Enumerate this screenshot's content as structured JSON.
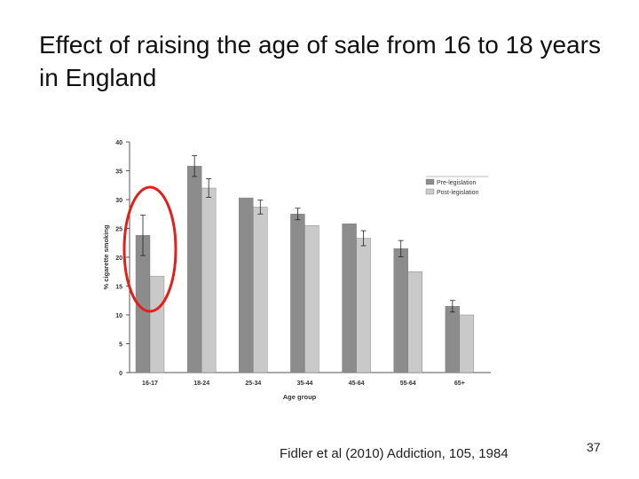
{
  "slide": {
    "title": "Effect of raising the age of sale from 16 to 18 years in England",
    "citation": "Fidler et al (2010) Addiction, 105, 1984",
    "page_number": "37"
  },
  "colors": {
    "pre": "#8c8c8c",
    "post": "#c9c9c9",
    "highlight": "#e0201b"
  },
  "chart_data": {
    "type": "bar",
    "xlabel": "Age group",
    "ylabel": "% cigarette smoking",
    "ylim": [
      0,
      40
    ],
    "yticks": [
      0,
      5,
      10,
      15,
      20,
      25,
      30,
      35,
      40
    ],
    "categories": [
      "16-17",
      "18-24",
      "25-34",
      "35-44",
      "45-64",
      "55-64",
      "65+"
    ],
    "series": [
      {
        "name": "Pre-legislation",
        "values": [
          23.8,
          35.8,
          30.3,
          27.5,
          25.8,
          21.5,
          11.5
        ],
        "errors": [
          3.5,
          1.8,
          0.0,
          1.0,
          0.0,
          1.4,
          1.0
        ]
      },
      {
        "name": "Post-legislation",
        "values": [
          16.7,
          32.0,
          28.7,
          25.5,
          23.3,
          17.5,
          10.0
        ],
        "errors": [
          0.0,
          1.6,
          1.2,
          0.0,
          1.3,
          0.0,
          0.0
        ]
      }
    ],
    "legend": "top-right",
    "grid": false,
    "annotation": "circle highlighting 16-17 group"
  }
}
